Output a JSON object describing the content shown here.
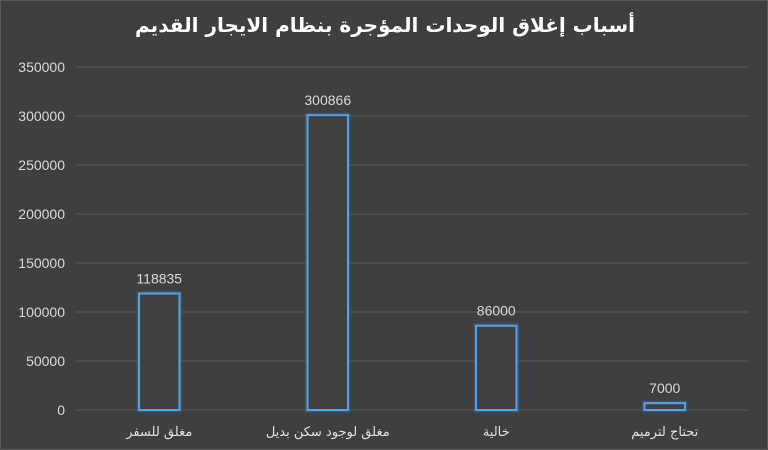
{
  "chart_data": {
    "type": "bar",
    "title": "أسباب إغلاق الوحدات المؤجرة بنظام الايجار القديم",
    "categories": [
      "مغلق للسفر",
      "مغلق لوجود سكن بديل",
      "خالية",
      "تحتاج لترميم"
    ],
    "values": [
      118835,
      300866,
      86000,
      7000
    ],
    "value_labels": [
      "118835",
      "300866",
      "86000",
      "7000"
    ],
    "ylim": [
      0,
      350000
    ],
    "yticks": [
      0,
      50000,
      100000,
      150000,
      200000,
      250000,
      300000,
      350000
    ],
    "ytick_labels": [
      "0",
      "50000",
      "100000",
      "150000",
      "200000",
      "250000",
      "300000",
      "350000"
    ],
    "xlabel": "",
    "ylabel": "",
    "grid": true,
    "colors": {
      "background": "#3f3f3f",
      "bar_fill": "#404040",
      "bar_stroke": "#5aa0e6",
      "grid": "#595959",
      "text": "#d9d9d9"
    }
  }
}
